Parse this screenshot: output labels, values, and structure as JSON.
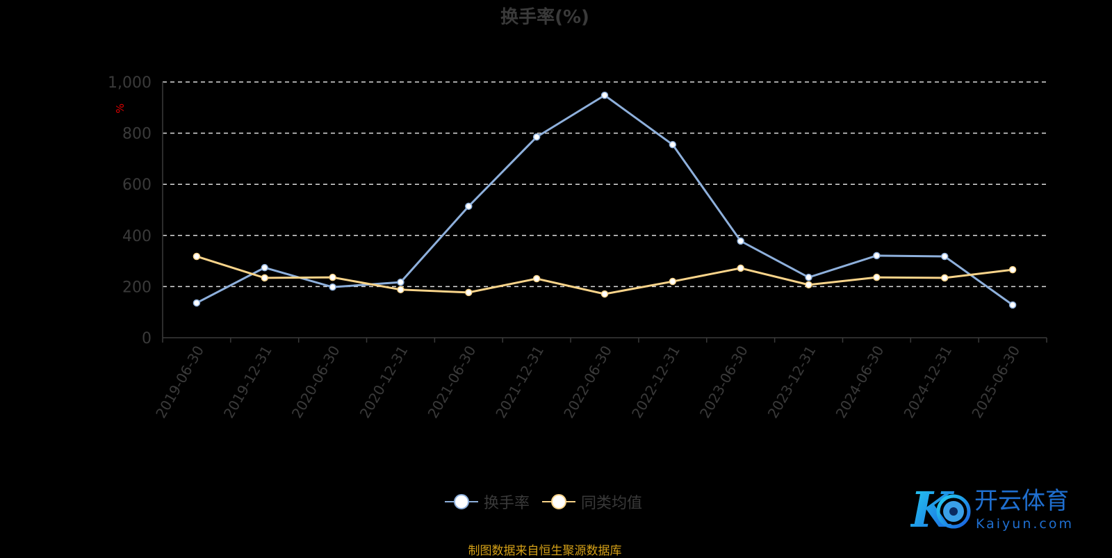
{
  "chart_data": {
    "type": "line",
    "title": "换手率(%)",
    "ylabel": "%",
    "ylim": [
      0,
      1000
    ],
    "yticks": [
      "0",
      "200",
      "400",
      "600",
      "800",
      "1,000"
    ],
    "ytick_values": [
      0,
      200,
      400,
      600,
      800,
      1000
    ],
    "grid": true,
    "legend_position": "bottom",
    "categories": [
      "2019-06-30",
      "2019-12-31",
      "2020-06-30",
      "2020-12-31",
      "2021-06-30",
      "2021-12-31",
      "2022-06-30",
      "2022-12-31",
      "2023-06-30",
      "2023-12-31",
      "2024-06-30",
      "2024-12-31",
      "2025-06-30"
    ],
    "series": [
      {
        "name": "换手率",
        "color": "#8eb0dc",
        "values": [
          136,
          274,
          198,
          217,
          514,
          785,
          948,
          755,
          378,
          236,
          321,
          318,
          128
        ]
      },
      {
        "name": "同类均值",
        "color": "#f9d48a",
        "values": [
          318,
          234,
          236,
          188,
          177,
          231,
          171,
          220,
          272,
          207,
          236,
          234,
          266
        ]
      }
    ]
  },
  "source": "制图数据来自恒生聚源数据库",
  "logo": {
    "name": "开云体育",
    "domain": "kaiyun.com"
  }
}
